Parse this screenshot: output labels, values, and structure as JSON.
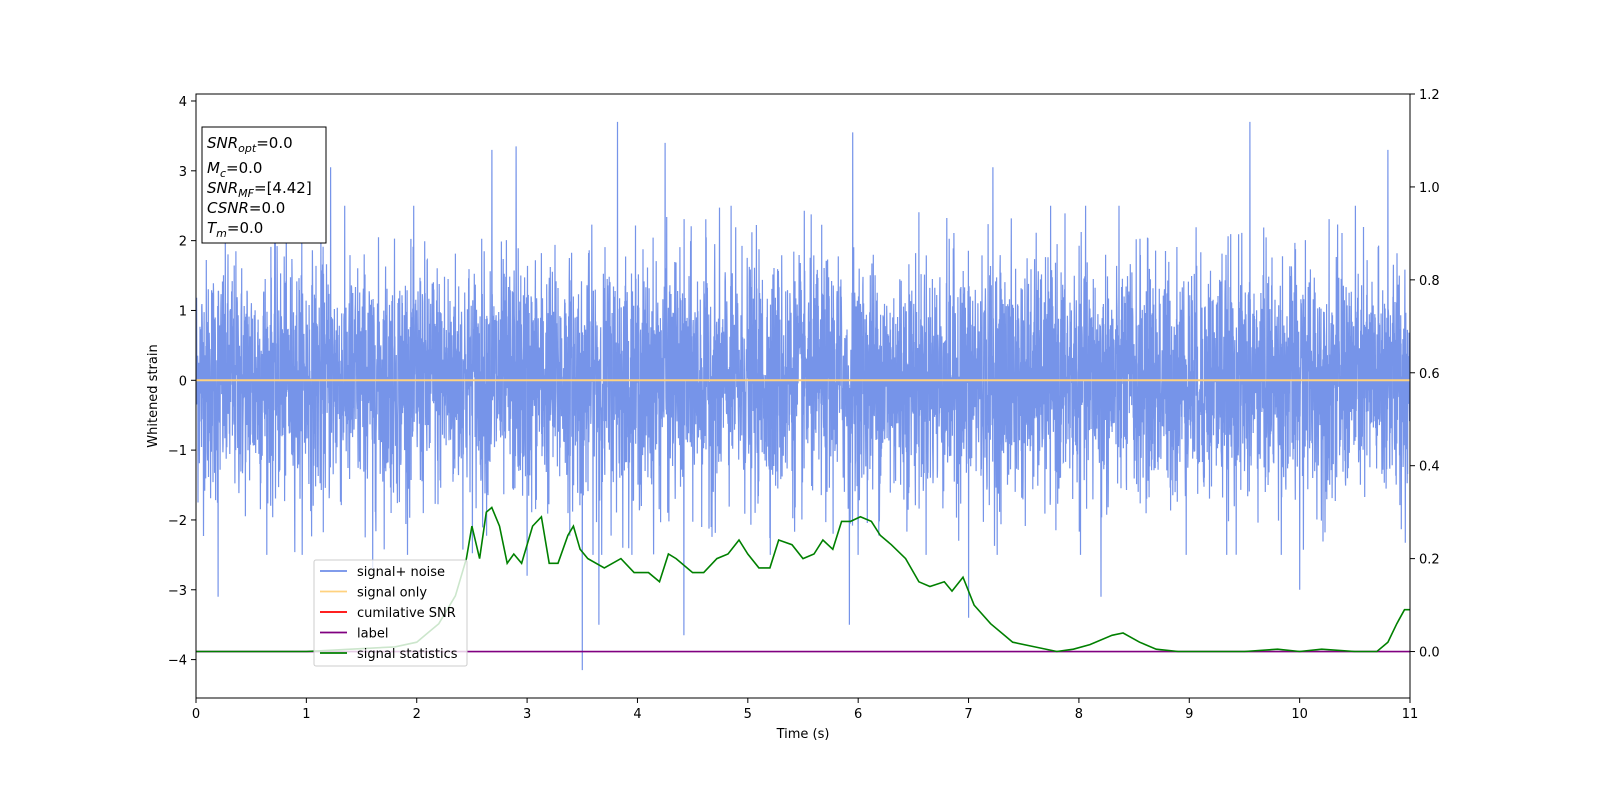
{
  "chart_data": {
    "type": "line",
    "xlabel": "Time (s)",
    "ylabel": "Whitened strain",
    "xlim": [
      0,
      11
    ],
    "ylim": [
      -4.55,
      4.1
    ],
    "y2lim": [
      -0.1,
      1.2
    ],
    "x_ticks": [
      "0",
      "1",
      "2",
      "3",
      "4",
      "5",
      "6",
      "7",
      "8",
      "9",
      "10",
      "11"
    ],
    "y_ticks": [
      "4",
      "3",
      "2",
      "1",
      "0",
      "−1",
      "−2",
      "−3",
      "−4"
    ],
    "y2_ticks": [
      "1.2",
      "1.0",
      "0.8",
      "0.6",
      "0.4",
      "0.2",
      "0.0"
    ],
    "grid": false,
    "legend_position": "lower-left",
    "legend": [
      {
        "label": "signal+ noise",
        "color": "#6f8ee8"
      },
      {
        "label": "signal only",
        "color": "#ffd27f"
      },
      {
        "label": "cumilative SNR",
        "color": "#ff0000"
      },
      {
        "label": "label",
        "color": "#800080"
      },
      {
        "label": "signal statistics",
        "color": "#008000"
      }
    ],
    "info_box": {
      "snr_opt": {
        "name": "SNR",
        "sub": "opt",
        "value": "=0.0"
      },
      "mc": {
        "name": "M",
        "sub": "c",
        "value": "=0.0"
      },
      "snr_mf": {
        "name": "SNR",
        "sub": "MF",
        "value": "=[4.42]"
      },
      "csnr": {
        "name": "CSNR",
        "value": "=0.0"
      },
      "tm": {
        "name": "T",
        "sub": "m",
        "value": "=0.0"
      }
    },
    "series": [
      {
        "name": "signal+ noise",
        "axis": "left",
        "style": "dense gaussian noise",
        "color": "#6f8ee8",
        "typical_range": [
          -2.0,
          2.0
        ],
        "peaks": [
          {
            "x": 0.2,
            "y": -3.1
          },
          {
            "x": 1.22,
            "y": 3.05
          },
          {
            "x": 1.6,
            "y": -2.7
          },
          {
            "x": 2.68,
            "y": 3.3
          },
          {
            "x": 2.9,
            "y": 3.35
          },
          {
            "x": 3.0,
            "y": -2.8
          },
          {
            "x": 3.5,
            "y": -4.15
          },
          {
            "x": 3.65,
            "y": -3.5
          },
          {
            "x": 3.82,
            "y": 3.7
          },
          {
            "x": 4.25,
            "y": 3.4
          },
          {
            "x": 4.42,
            "y": -3.65
          },
          {
            "x": 5.95,
            "y": 3.55
          },
          {
            "x": 5.92,
            "y": -3.5
          },
          {
            "x": 7.0,
            "y": -3.4
          },
          {
            "x": 7.22,
            "y": 3.05
          },
          {
            "x": 8.2,
            "y": -3.1
          },
          {
            "x": 9.55,
            "y": 3.7
          },
          {
            "x": 10.0,
            "y": -3.0
          },
          {
            "x": 10.8,
            "y": 3.3
          }
        ]
      },
      {
        "name": "signal only",
        "axis": "left",
        "color": "#ffd27f",
        "x": [
          0,
          11
        ],
        "y": [
          0,
          0
        ]
      },
      {
        "name": "label",
        "axis": "right",
        "color": "#800080",
        "x": [
          0,
          11
        ],
        "y": [
          0,
          0
        ]
      },
      {
        "name": "signal statistics",
        "axis": "right",
        "color": "#008000",
        "x": [
          0,
          0.5,
          1.0,
          1.4,
          1.8,
          2.0,
          2.2,
          2.35,
          2.45,
          2.5,
          2.57,
          2.63,
          2.68,
          2.75,
          2.82,
          2.88,
          2.95,
          3.05,
          3.13,
          3.2,
          3.28,
          3.37,
          3.42,
          3.48,
          3.55,
          3.7,
          3.85,
          3.97,
          4.1,
          4.2,
          4.28,
          4.35,
          4.5,
          4.6,
          4.72,
          4.82,
          4.92,
          5.0,
          5.1,
          5.2,
          5.28,
          5.4,
          5.5,
          5.6,
          5.68,
          5.77,
          5.85,
          5.93,
          6.02,
          6.12,
          6.2,
          6.3,
          6.43,
          6.55,
          6.65,
          6.78,
          6.85,
          6.95,
          7.05,
          7.2,
          7.4,
          7.6,
          7.8,
          7.95,
          8.1,
          8.3,
          8.4,
          8.55,
          8.7,
          8.9,
          9.2,
          9.5,
          9.8,
          10.0,
          10.2,
          10.5,
          10.7,
          10.8,
          10.88,
          10.95,
          11.0
        ],
        "y": [
          0.0,
          0.0,
          0.0,
          0.005,
          0.01,
          0.02,
          0.06,
          0.12,
          0.2,
          0.27,
          0.2,
          0.3,
          0.31,
          0.27,
          0.19,
          0.21,
          0.19,
          0.27,
          0.29,
          0.19,
          0.19,
          0.25,
          0.27,
          0.22,
          0.2,
          0.18,
          0.2,
          0.17,
          0.17,
          0.15,
          0.21,
          0.2,
          0.17,
          0.17,
          0.2,
          0.21,
          0.24,
          0.21,
          0.18,
          0.18,
          0.24,
          0.23,
          0.2,
          0.21,
          0.24,
          0.22,
          0.28,
          0.28,
          0.29,
          0.28,
          0.25,
          0.23,
          0.2,
          0.15,
          0.14,
          0.15,
          0.13,
          0.16,
          0.1,
          0.06,
          0.02,
          0.01,
          0.0,
          0.005,
          0.015,
          0.035,
          0.04,
          0.02,
          0.005,
          0.0,
          0.0,
          0.0,
          0.005,
          0.0,
          0.005,
          0.0,
          0.0,
          0.02,
          0.06,
          0.09,
          0.09
        ]
      }
    ]
  }
}
